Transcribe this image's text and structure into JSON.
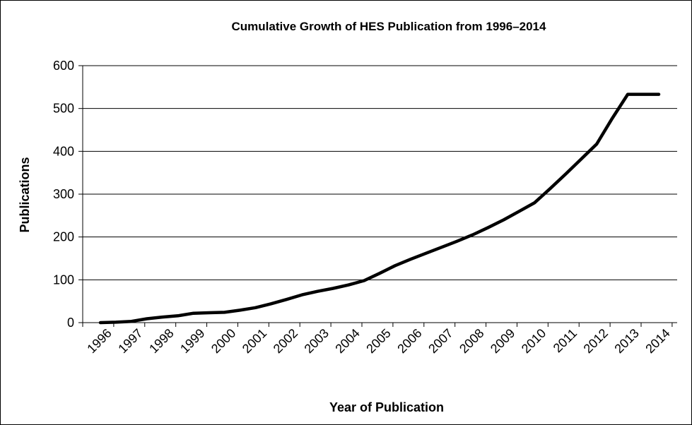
{
  "chart_data": {
    "type": "line",
    "title": "Cumulative Growth of HES Publication from 1996–2014",
    "xlabel": "Year of Publication",
    "ylabel": "Publications",
    "ylim": [
      0,
      600
    ],
    "yticks": [
      0,
      100,
      200,
      300,
      400,
      500,
      600
    ],
    "grid": true,
    "legend": "none",
    "x": [
      1996,
      1996.5,
      1997,
      1997.5,
      1998,
      1998.5,
      1999,
      1999.5,
      2000,
      2000.5,
      2001,
      2001.5,
      2002,
      2002.5,
      2003,
      2003.5,
      2004,
      2004.5,
      2005,
      2005.5,
      2006,
      2006.5,
      2007,
      2007.5,
      2008,
      2008.5,
      2009,
      2009.5,
      2010,
      2010.5,
      2011,
      2011.5,
      2012,
      2012.5,
      2013,
      2013.5,
      2014
    ],
    "xticks": [
      "1996",
      "1997",
      "1998",
      "1999",
      "2000",
      "2001",
      "2002",
      "2003",
      "2004",
      "2005",
      "2006",
      "2007",
      "2008",
      "2009",
      "2010",
      "2011",
      "2012",
      "2013",
      "2014"
    ],
    "series": [
      {
        "values": [
          0,
          1,
          3,
          9,
          13,
          16,
          22,
          23,
          24,
          29,
          35,
          44,
          54,
          65,
          73,
          80,
          88,
          98,
          115,
          133,
          148,
          162,
          176,
          190,
          205,
          222,
          240,
          260,
          280,
          313,
          347,
          382,
          417,
          477,
          533,
          533,
          533
        ],
        "color": "#000000"
      }
    ]
  }
}
